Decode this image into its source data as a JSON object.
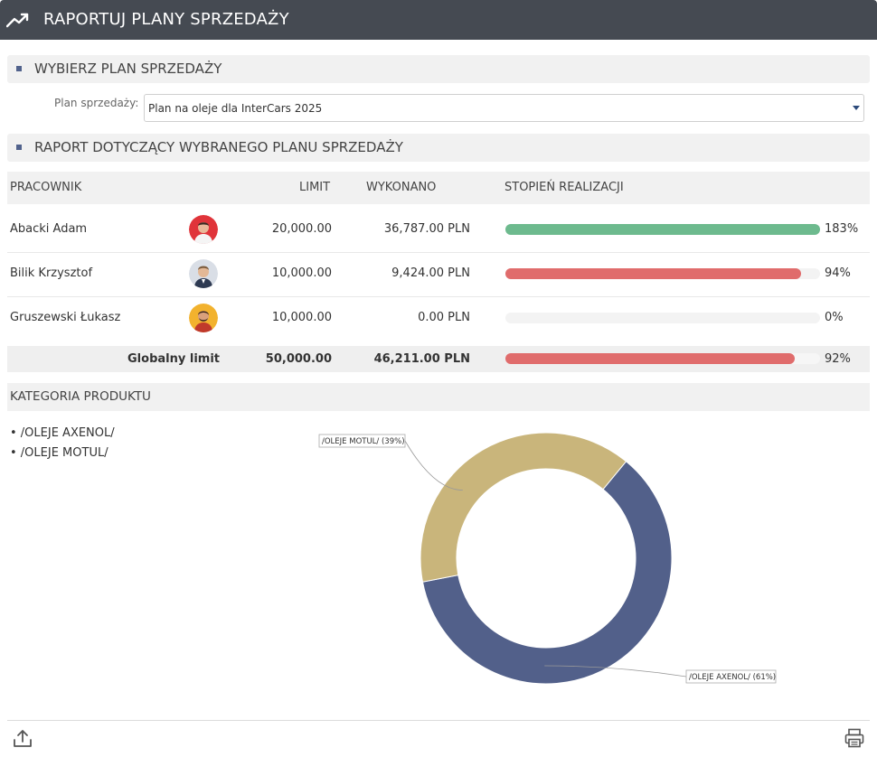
{
  "window": {
    "title": "RAPORTUJ PLANY SPRZEDAŻY"
  },
  "sections": {
    "select_plan": "WYBIERZ PLAN SPRZEDAŻY",
    "report": "RAPORT DOTYCZĄCY WYBRANEGO PLANU SPRZEDAŻY"
  },
  "plan": {
    "label": "Plan sprzedaży:",
    "selected": "Plan na oleje dla InterCars 2025"
  },
  "table": {
    "headers": {
      "employee": "PRACOWNIK",
      "limit": "LIMIT",
      "done": "WYKONANO",
      "progress": "STOPIEŃ REALIZACJI"
    },
    "rows": [
      {
        "name": "Abacki Adam",
        "limit": "20,000.00",
        "done": "36,787.00 PLN",
        "pct": "183%",
        "fill": 1.0,
        "color": "#6dba8e"
      },
      {
        "name": "Bilik Krzysztof",
        "limit": "10,000.00",
        "done": "9,424.00 PLN",
        "pct": "94%",
        "fill": 0.94,
        "color": "#e06c6c"
      },
      {
        "name": "Gruszewski Łukasz",
        "limit": "10,000.00",
        "done": "0.00 PLN",
        "pct": "0%",
        "fill": 0.0,
        "color": "#e06c6c"
      }
    ],
    "global": {
      "label": "Globalny limit",
      "limit": "50,000.00",
      "done": "46,211.00 PLN",
      "pct": "92%",
      "fill": 0.92,
      "color": "#e06c6c"
    }
  },
  "category": {
    "header": "KATEGORIA PRODUKTU",
    "items": [
      "• /OLEJE AXENOL/",
      "• /OLEJE MOTUL/"
    ]
  },
  "chart_data": {
    "type": "pie",
    "categories": [
      "/OLEJE MOTUL/",
      "/OLEJE AXENOL/"
    ],
    "values": [
      39,
      61
    ],
    "colors": [
      "#c9b57b",
      "#52608a"
    ],
    "labels": [
      "/OLEJE MOTUL/ (39%)",
      "/OLEJE AXENOL/ (61%)"
    ],
    "donut": true
  },
  "icons": {
    "title": "trending-up-icon",
    "export": "upload-icon",
    "print": "printer-icon"
  }
}
